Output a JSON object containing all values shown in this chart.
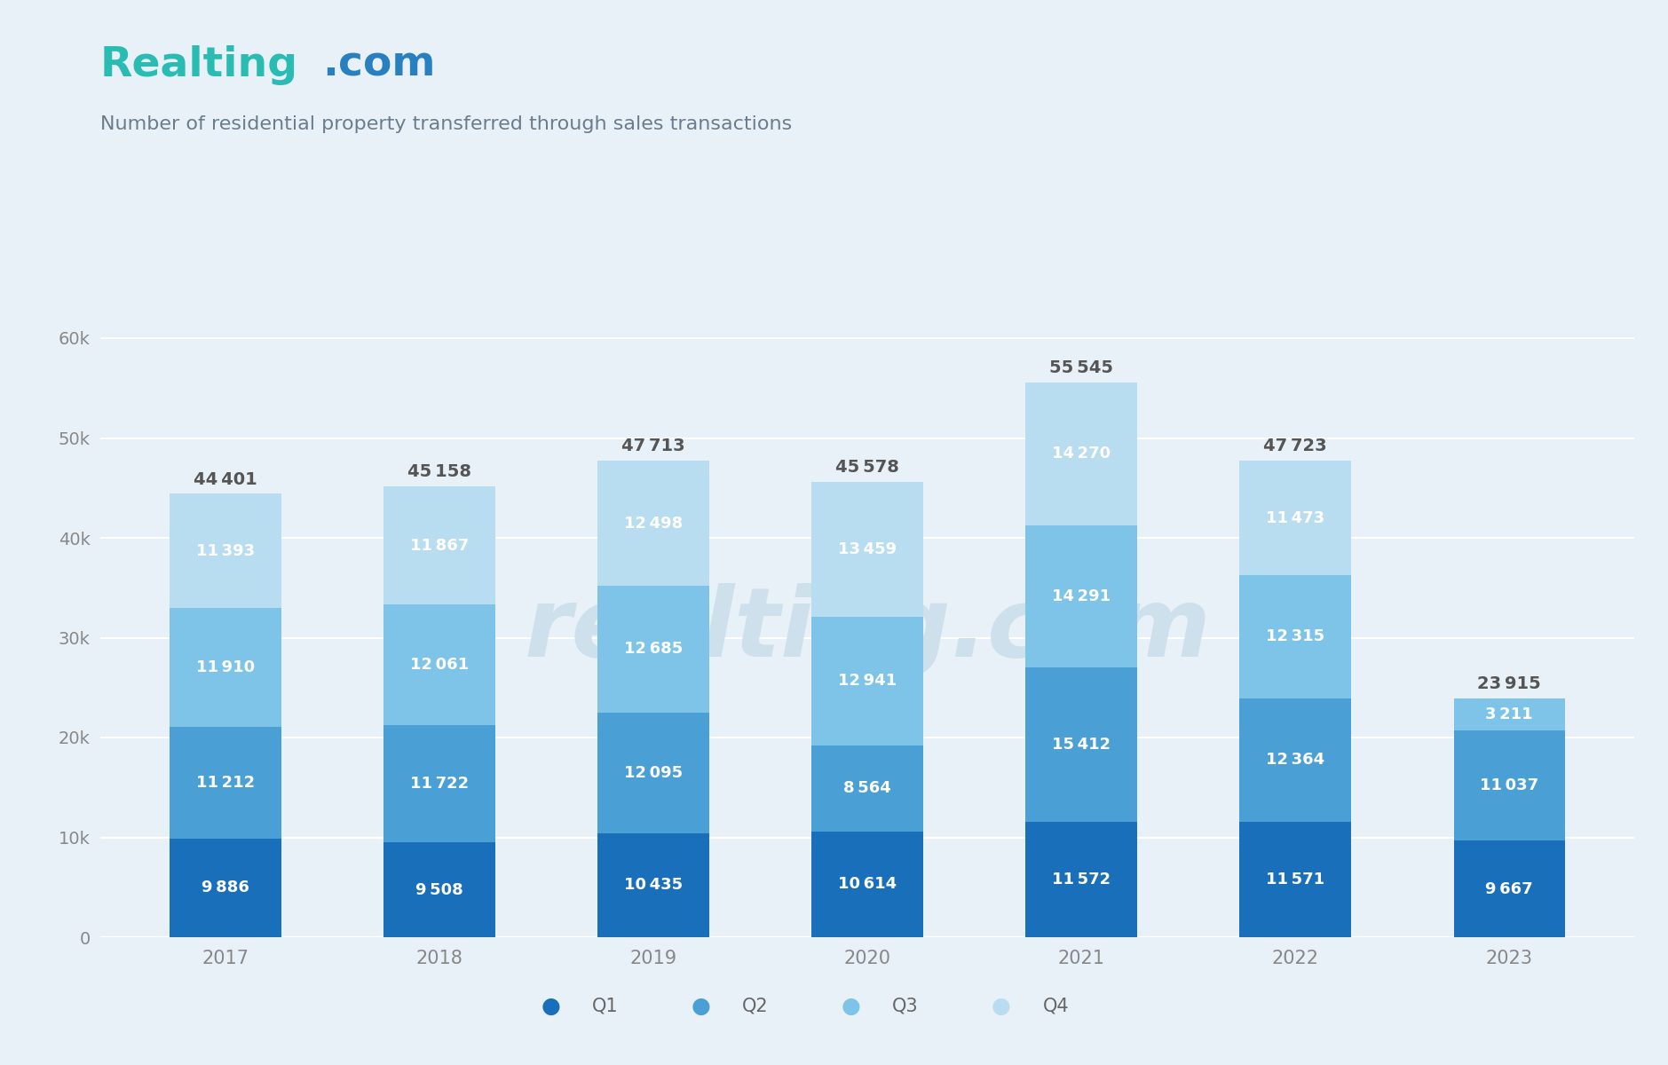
{
  "years": [
    "2017",
    "2018",
    "2019",
    "2020",
    "2021",
    "2022",
    "2023"
  ],
  "q1": [
    9886,
    9508,
    10435,
    10614,
    11572,
    11571,
    9667
  ],
  "q2": [
    11212,
    11722,
    12095,
    8564,
    15412,
    12364,
    11037
  ],
  "q3": [
    11910,
    12061,
    12685,
    12941,
    14291,
    12315,
    3211
  ],
  "q4": [
    11393,
    11867,
    12498,
    13459,
    14270,
    11473,
    0
  ],
  "totals": [
    44401,
    45158,
    47713,
    45578,
    55545,
    47723,
    23915
  ],
  "colors": {
    "q1": "#1a6fba",
    "q2": "#4a9fd4",
    "q3": "#7dc4e8",
    "q4": "#b8ddf0"
  },
  "background_color": "#e8f1f8",
  "title_realting": "Realting",
  "title_com": ".com",
  "title_realting_color": "#2abcb3",
  "title_com_color": "#2980c0",
  "title_sub": "Number of residential property transferred through sales transactions",
  "title_sub_color": "#6b7c8d",
  "ylabel_ticks": [
    "0",
    "10k",
    "20k",
    "30k",
    "40k",
    "50k",
    "60k"
  ],
  "ylabel_values": [
    0,
    10000,
    20000,
    30000,
    40000,
    50000,
    60000
  ],
  "ylim": [
    0,
    64000
  ],
  "bar_width": 0.52,
  "legend_labels": [
    "Q1",
    "Q2",
    "Q3",
    "Q4"
  ],
  "watermark_text": "realting.com",
  "watermark_color": "#cfe0ed",
  "grid_color": "#ffffff",
  "label_color": "#ffffff",
  "total_label_color": "#555555",
  "tick_color": "#888888",
  "label_fontsize": 13,
  "total_fontsize": 14,
  "tick_fontsize": 14,
  "title_fontsize": 34,
  "subtitle_fontsize": 16
}
